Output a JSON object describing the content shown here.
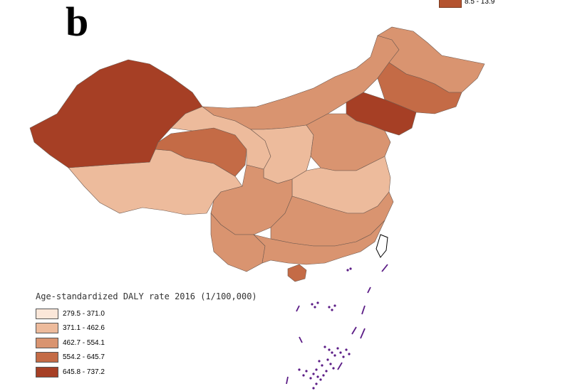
{
  "panel_label": "b",
  "top_legend": {
    "label": "8.5 - 13.9",
    "color": "#B4532F"
  },
  "legend": {
    "title": "Age-standardized DALY rate 2016 (1/100,000)",
    "items": [
      {
        "label": "279.5 - 371.0",
        "color": "#FBE7D9"
      },
      {
        "label": "371.1 - 462.6",
        "color": "#EDBB9C"
      },
      {
        "label": "462.7 - 554.1",
        "color": "#D99470"
      },
      {
        "label": "554.2 - 645.7",
        "color": "#C46B46"
      },
      {
        "label": "645.8 - 737.2",
        "color": "#A63F25"
      }
    ]
  },
  "map": {
    "boundary_color": "#6f5a50",
    "island_color": "#5B1C86",
    "regions": [
      {
        "name": "Xinjiang",
        "class": 4
      },
      {
        "name": "Tibet",
        "class": 1
      },
      {
        "name": "Qinghai",
        "class": 3
      },
      {
        "name": "Gansu",
        "class": 1
      },
      {
        "name": "Inner Mongolia",
        "class": 2
      },
      {
        "name": "Heilongjiang",
        "class": 2
      },
      {
        "name": "Jilin",
        "class": 3
      },
      {
        "name": "Liaoning",
        "class": 4
      },
      {
        "name": "Sichuan",
        "class": 2
      },
      {
        "name": "Yunnan",
        "class": 2
      },
      {
        "name": "Hainan",
        "class": 3
      }
    ]
  }
}
